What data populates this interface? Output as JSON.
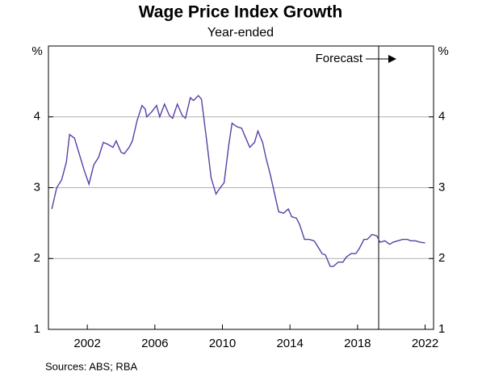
{
  "chart_data": {
    "type": "line",
    "title": "Wage Price Index Growth",
    "subtitle": "Year-ended",
    "y_unit": "%",
    "source": "Sources:   ABS; RBA",
    "xlim": [
      1999.7,
      2022.5
    ],
    "xticks": [
      2002,
      2006,
      2010,
      2014,
      2018,
      2022
    ],
    "ylim": [
      1,
      5
    ],
    "yticks": [
      1,
      2,
      3,
      4
    ],
    "grid": true,
    "forecast": {
      "label": "Forecast",
      "x": 2019.25
    },
    "x": [
      1999.9,
      2000.19,
      2000.48,
      2000.76,
      2000.95,
      2001.24,
      2001.52,
      2001.81,
      2002.1,
      2002.38,
      2002.67,
      2002.95,
      2003.24,
      2003.52,
      2003.71,
      2004.0,
      2004.19,
      2004.48,
      2004.67,
      2004.95,
      2005.24,
      2005.43,
      2005.52,
      2005.81,
      2006.1,
      2006.29,
      2006.57,
      2006.86,
      2007.05,
      2007.33,
      2007.62,
      2007.81,
      2008.1,
      2008.29,
      2008.57,
      2008.76,
      2009.05,
      2009.33,
      2009.62,
      2009.81,
      2010.1,
      2010.38,
      2010.57,
      2010.86,
      2011.14,
      2011.33,
      2011.62,
      2011.9,
      2012.1,
      2012.38,
      2012.57,
      2012.86,
      2013.14,
      2013.33,
      2013.62,
      2013.9,
      2014.1,
      2014.38,
      2014.57,
      2014.86,
      2015.14,
      2015.43,
      2015.62,
      2015.9,
      2016.1,
      2016.38,
      2016.57,
      2016.86,
      2017.14,
      2017.33,
      2017.62,
      2017.9,
      2018.1,
      2018.38,
      2018.57,
      2018.86,
      2019.14,
      2019.33,
      2019.62,
      2019.9,
      2020.1,
      2020.38,
      2020.67,
      2020.95,
      2021.14,
      2021.43,
      2021.71,
      2022.0
    ],
    "series": [
      {
        "name": "Wage Price Index",
        "color": "#5b3fa6",
        "values": [
          2.7,
          3.0,
          3.11,
          3.36,
          3.75,
          3.7,
          3.48,
          3.25,
          3.05,
          3.32,
          3.43,
          3.64,
          3.61,
          3.57,
          3.66,
          3.5,
          3.48,
          3.57,
          3.66,
          3.95,
          4.16,
          4.11,
          4.0,
          4.07,
          4.16,
          4.0,
          4.18,
          4.02,
          3.98,
          4.18,
          4.02,
          3.98,
          4.27,
          4.23,
          4.3,
          4.25,
          3.7,
          3.14,
          2.91,
          2.98,
          3.07,
          3.61,
          3.91,
          3.86,
          3.84,
          3.73,
          3.57,
          3.64,
          3.8,
          3.64,
          3.43,
          3.16,
          2.86,
          2.66,
          2.64,
          2.7,
          2.59,
          2.57,
          2.48,
          2.27,
          2.27,
          2.25,
          2.18,
          2.07,
          2.05,
          1.89,
          1.89,
          1.95,
          1.95,
          2.02,
          2.07,
          2.07,
          2.14,
          2.27,
          2.27,
          2.34,
          2.32,
          2.23,
          2.25,
          2.2,
          2.23,
          2.25,
          2.27,
          2.27,
          2.25,
          2.25,
          2.23,
          2.22
        ]
      }
    ]
  }
}
